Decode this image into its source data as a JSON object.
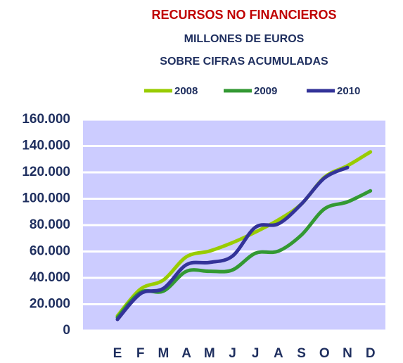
{
  "chart_data": {
    "type": "line",
    "title": "RECURSOS NO FINANCIEROS",
    "subtitle": [
      "MILLONES DE EUROS",
      "SOBRE CIFRAS ACUMULADAS"
    ],
    "categories": [
      "E",
      "F",
      "M",
      "A",
      "M",
      "J",
      "J",
      "A",
      "S",
      "O",
      "N",
      "D"
    ],
    "series": [
      {
        "name": "2008",
        "color": "#99cc00",
        "values": [
          11200,
          31500,
          38400,
          56000,
          60300,
          66700,
          74700,
          84000,
          96000,
          116300,
          125000,
          135500
        ]
      },
      {
        "name": "2009",
        "color": "#339933",
        "values": [
          10000,
          29000,
          30000,
          45000,
          45000,
          46000,
          58700,
          60300,
          72500,
          92300,
          97600,
          106000
        ]
      },
      {
        "name": "2010",
        "color": "#333399",
        "values": [
          8500,
          28000,
          32000,
          50000,
          51700,
          56500,
          78400,
          81000,
          96000,
          115700,
          123700,
          null
        ]
      }
    ],
    "ylim": [
      0,
      160000
    ],
    "yticks": [
      0,
      {
        "value": 20000,
        "label": "20.000"
      },
      {
        "value": 40000,
        "label": "40.000"
      },
      {
        "value": 60000,
        "label": "60.000"
      },
      {
        "value": 80000,
        "label": "80.000"
      },
      {
        "value": 100000,
        "label": "100.000"
      },
      {
        "value": 120000,
        "label": "120.000"
      },
      {
        "value": 140000,
        "label": "140.000"
      },
      {
        "value": 160000,
        "label": "160.000"
      }
    ],
    "grid": true,
    "plot_background": "#ccccff",
    "legend": "top"
  }
}
